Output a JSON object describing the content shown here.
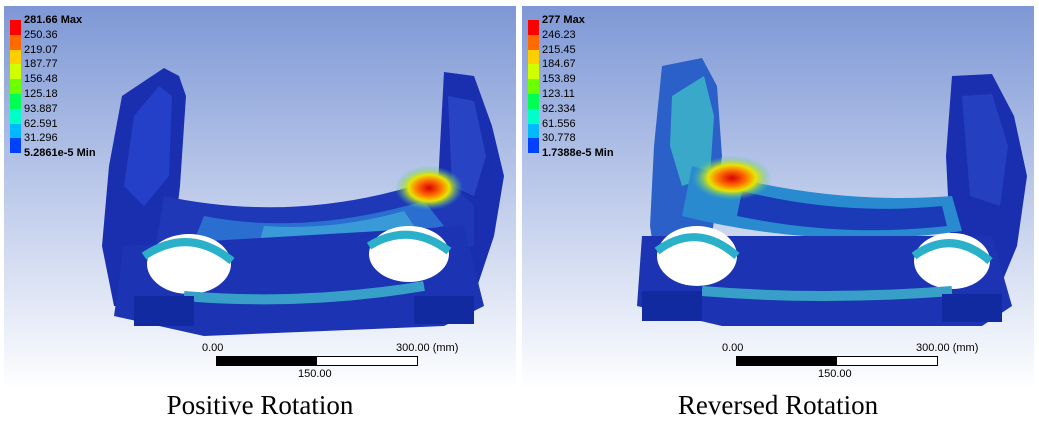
{
  "panels": [
    {
      "caption": "Positive Rotation",
      "legend": {
        "max_label": "281.66 Max",
        "levels": [
          "250.36",
          "219.07",
          "187.77",
          "156.48",
          "125.18",
          "93.887",
          "62.591",
          "31.296"
        ],
        "min_label": "5.2861e-5 Min",
        "colors": [
          "#ff0000",
          "#ff6a00",
          "#ffce00",
          "#cfff00",
          "#6bff00",
          "#00ff55",
          "#00ffc8",
          "#00b9ff",
          "#0040ff"
        ]
      },
      "scale": {
        "start": "0.00",
        "end": "300.00 (mm)",
        "mid": "150.00"
      },
      "hotspot": "right-arm-root"
    },
    {
      "caption": "Reversed Rotation",
      "legend": {
        "max_label": "277 Max",
        "levels": [
          "246.23",
          "215.45",
          "184.67",
          "153.89",
          "123.11",
          "92.334",
          "61.556",
          "30.778"
        ],
        "min_label": "1.7388e-5 Min",
        "colors": [
          "#ff0000",
          "#ff6a00",
          "#ffce00",
          "#cfff00",
          "#6bff00",
          "#00ff55",
          "#00ffc8",
          "#00b9ff",
          "#0040ff"
        ]
      },
      "scale": {
        "start": "0.00",
        "end": "300.00 (mm)",
        "mid": "150.00"
      },
      "hotspot": "left-arm-root"
    }
  ]
}
